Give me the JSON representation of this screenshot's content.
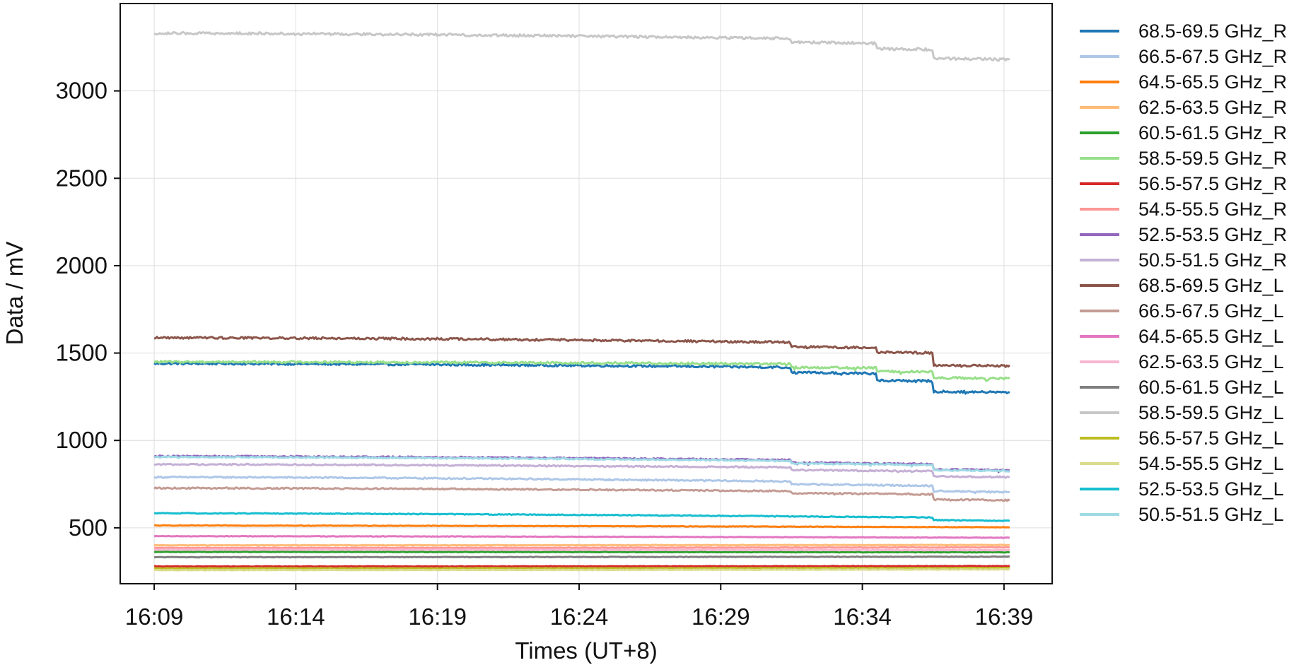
{
  "chart_data": {
    "type": "line",
    "xlabel": "Times (UT+8)",
    "ylabel": "Data / mV",
    "x_ticks": [
      "16:09",
      "16:14",
      "16:19",
      "16:24",
      "16:29",
      "16:34",
      "16:39"
    ],
    "x_tick_minutes": [
      0,
      5,
      10,
      15,
      20,
      25,
      30
    ],
    "xlim_minutes": [
      -1.2,
      31.7
    ],
    "y_ticks": [
      500,
      1000,
      1500,
      2000,
      2500,
      3000
    ],
    "ylim": [
      180,
      3500
    ],
    "grid": true,
    "legend_position": "outside-right",
    "series": [
      {
        "name": "68.5-69.5 GHz_R",
        "color": "#1f77b4",
        "start": 1440,
        "end": 1275,
        "drift": 60,
        "noise": 6,
        "events": [
          {
            "t": 22.5,
            "d": 30
          },
          {
            "t": 25.5,
            "d": 40
          },
          {
            "t": 27.5,
            "d": 60
          }
        ]
      },
      {
        "name": "66.5-67.5 GHz_R",
        "color": "#aec7e8",
        "start": 790,
        "end": 705,
        "drift": 25,
        "noise": 4,
        "events": [
          {
            "t": 22.5,
            "d": 15
          },
          {
            "t": 27.5,
            "d": 30
          }
        ]
      },
      {
        "name": "64.5-65.5 GHz_R",
        "color": "#ff7f0e",
        "start": 513,
        "end": 503,
        "drift": 7,
        "noise": 1.5,
        "events": []
      },
      {
        "name": "62.5-63.5 GHz_R",
        "color": "#ffbb78",
        "start": 400,
        "end": 402,
        "drift": 0,
        "noise": 1.5,
        "events": []
      },
      {
        "name": "60.5-61.5 GHz_R",
        "color": "#2ca02c",
        "start": 362,
        "end": 360,
        "drift": 0,
        "noise": 1.5,
        "events": []
      },
      {
        "name": "58.5-59.5 GHz_R",
        "color": "#98df8a",
        "start": 1450,
        "end": 1355,
        "drift": 40,
        "noise": 6,
        "events": [
          {
            "t": 22.5,
            "d": 20
          },
          {
            "t": 25.5,
            "d": 20
          },
          {
            "t": 27.5,
            "d": 35
          }
        ]
      },
      {
        "name": "56.5-57.5 GHz_R",
        "color": "#d62728",
        "start": 279,
        "end": 281,
        "drift": 0,
        "noise": 1.5,
        "events": []
      },
      {
        "name": "54.5-55.5 GHz_R",
        "color": "#ff9896",
        "start": 385,
        "end": 388,
        "drift": 0,
        "noise": 1.5,
        "events": []
      },
      {
        "name": "52.5-53.5 GHz_R",
        "color": "#9467bd",
        "start": 910,
        "end": 830,
        "drift": 30,
        "noise": 4,
        "events": [
          {
            "t": 22.5,
            "d": 15
          },
          {
            "t": 27.5,
            "d": 30
          }
        ]
      },
      {
        "name": "50.5-51.5 GHz_R",
        "color": "#c5b0d5",
        "start": 863,
        "end": 790,
        "drift": 25,
        "noise": 4,
        "events": [
          {
            "t": 22.5,
            "d": 15
          },
          {
            "t": 27.5,
            "d": 30
          }
        ]
      },
      {
        "name": "68.5-69.5 GHz_L",
        "color": "#8c564b",
        "start": 1588,
        "end": 1425,
        "drift": 45,
        "noise": 6,
        "events": [
          {
            "t": 22.5,
            "d": 25
          },
          {
            "t": 25.5,
            "d": 25
          },
          {
            "t": 27.5,
            "d": 70
          }
        ]
      },
      {
        "name": "66.5-67.5 GHz_L",
        "color": "#c49c94",
        "start": 727,
        "end": 658,
        "drift": 20,
        "noise": 4,
        "events": [
          {
            "t": 22.5,
            "d": 12
          },
          {
            "t": 27.5,
            "d": 30
          }
        ]
      },
      {
        "name": "64.5-65.5 GHz_L",
        "color": "#e377c2",
        "start": 452,
        "end": 443,
        "drift": 5,
        "noise": 1.5,
        "events": []
      },
      {
        "name": "62.5-63.5 GHz_L",
        "color": "#f7b6d2",
        "start": 375,
        "end": 372,
        "drift": 0,
        "noise": 1.5,
        "events": []
      },
      {
        "name": "60.5-61.5 GHz_L",
        "color": "#7f7f7f",
        "start": 332,
        "end": 335,
        "drift": 0,
        "noise": 1.5,
        "events": []
      },
      {
        "name": "58.5-59.5 GHz_L",
        "color": "#c7c7c7",
        "start": 3330,
        "end": 3180,
        "drift": 60,
        "noise": 7,
        "events": [
          {
            "t": 22.5,
            "d": 20
          },
          {
            "t": 25.5,
            "d": 30
          },
          {
            "t": 27.5,
            "d": 50
          }
        ]
      },
      {
        "name": "56.5-57.5 GHz_L",
        "color": "#bcbd22",
        "start": 268,
        "end": 270,
        "drift": 0,
        "noise": 1.5,
        "events": []
      },
      {
        "name": "54.5-55.5 GHz_L",
        "color": "#dbdb8d",
        "start": 258,
        "end": 262,
        "drift": 0,
        "noise": 1.5,
        "events": []
      },
      {
        "name": "52.5-53.5 GHz_L",
        "color": "#17becf",
        "start": 583,
        "end": 540,
        "drift": 15,
        "noise": 2.5,
        "events": [
          {
            "t": 27.5,
            "d": 15
          }
        ]
      },
      {
        "name": "50.5-51.5 GHz_L",
        "color": "#9edae5",
        "start": 905,
        "end": 825,
        "drift": 30,
        "noise": 4,
        "events": [
          {
            "t": 22.5,
            "d": 15
          },
          {
            "t": 27.5,
            "d": 30
          }
        ]
      }
    ]
  }
}
